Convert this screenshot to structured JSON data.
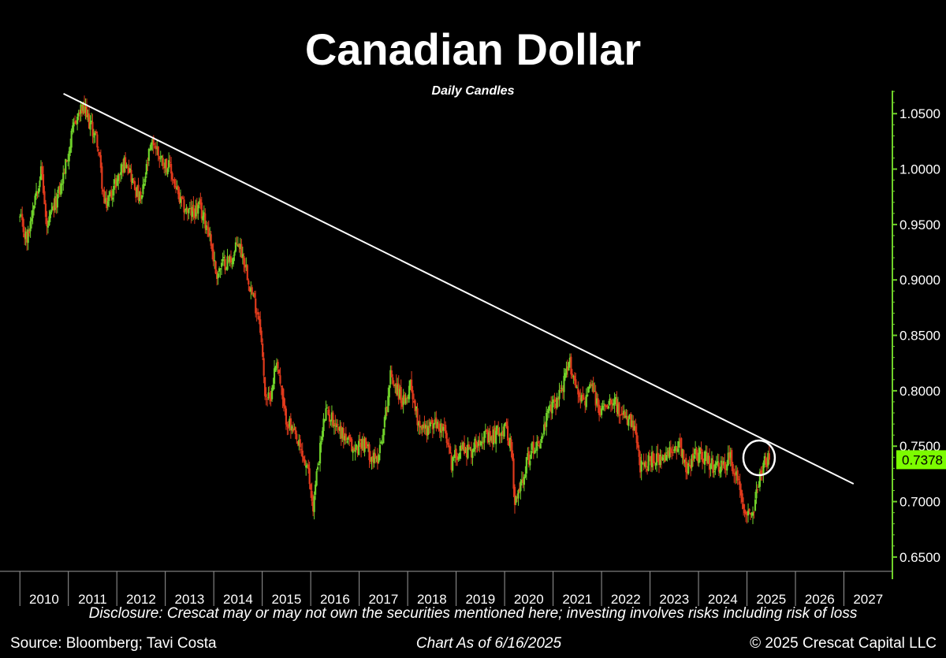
{
  "chart_data": {
    "type": "candlestick",
    "title": "Canadian Dollar",
    "subtitle": "Daily Candles",
    "x_axis": {
      "labels": [
        "2010",
        "2011",
        "2012",
        "2013",
        "2014",
        "2015",
        "2016",
        "2017",
        "2018",
        "2019",
        "2020",
        "2021",
        "2022",
        "2023",
        "2024",
        "2025",
        "2026",
        "2027"
      ],
      "range": [
        2009.72,
        2028.0
      ]
    },
    "y_axis": {
      "position": "right",
      "ticks": [
        0.65,
        0.7,
        0.75,
        0.8,
        0.85,
        0.9,
        0.95,
        1.0,
        1.05
      ],
      "tick_labels": [
        "0.6500",
        "0.7000",
        "0.7500",
        "0.8000",
        "0.8500",
        "0.9000",
        "0.9500",
        "1.0000",
        "1.0500"
      ],
      "range": [
        0.63,
        1.085
      ]
    },
    "last_price": {
      "value": 0.7378,
      "label": "0.7378",
      "color": "#7CFC00"
    },
    "up_color": "#6FD12A",
    "down_color": "#E03A1C",
    "trendline": {
      "start": [
        2010.9,
        1.068
      ],
      "end": [
        2027.2,
        0.716
      ],
      "color": "#FFFFFF"
    },
    "highlight_circle": {
      "x": 2025.25,
      "y": 0.7395,
      "color": "#FFFFFF"
    },
    "price_path": [
      [
        2010.0,
        0.955
      ],
      [
        2010.15,
        0.935
      ],
      [
        2010.3,
        0.975
      ],
      [
        2010.45,
        1.0
      ],
      [
        2010.55,
        0.945
      ],
      [
        2010.7,
        0.965
      ],
      [
        2010.85,
        0.985
      ],
      [
        2011.0,
        1.015
      ],
      [
        2011.15,
        1.045
      ],
      [
        2011.3,
        1.055
      ],
      [
        2011.45,
        1.04
      ],
      [
        2011.6,
        1.025
      ],
      [
        2011.75,
        0.965
      ],
      [
        2011.9,
        0.98
      ],
      [
        2012.0,
        0.99
      ],
      [
        2012.2,
        1.01
      ],
      [
        2012.35,
        0.985
      ],
      [
        2012.5,
        0.97
      ],
      [
        2012.65,
        1.01
      ],
      [
        2012.75,
        1.025
      ],
      [
        2012.9,
        1.01
      ],
      [
        2013.1,
        1.0
      ],
      [
        2013.3,
        0.97
      ],
      [
        2013.5,
        0.96
      ],
      [
        2013.7,
        0.965
      ],
      [
        2013.9,
        0.945
      ],
      [
        2014.05,
        0.905
      ],
      [
        2014.2,
        0.915
      ],
      [
        2014.4,
        0.92
      ],
      [
        2014.5,
        0.935
      ],
      [
        2014.65,
        0.915
      ],
      [
        2014.8,
        0.885
      ],
      [
        2014.95,
        0.865
      ],
      [
        2015.05,
        0.8
      ],
      [
        2015.15,
        0.79
      ],
      [
        2015.3,
        0.83
      ],
      [
        2015.45,
        0.78
      ],
      [
        2015.6,
        0.765
      ],
      [
        2015.8,
        0.745
      ],
      [
        2015.95,
        0.725
      ],
      [
        2016.05,
        0.695
      ],
      [
        2016.15,
        0.735
      ],
      [
        2016.3,
        0.78
      ],
      [
        2016.45,
        0.775
      ],
      [
        2016.6,
        0.765
      ],
      [
        2016.75,
        0.755
      ],
      [
        2016.9,
        0.745
      ],
      [
        2017.05,
        0.755
      ],
      [
        2017.2,
        0.745
      ],
      [
        2017.35,
        0.735
      ],
      [
        2017.5,
        0.765
      ],
      [
        2017.65,
        0.815
      ],
      [
        2017.8,
        0.8
      ],
      [
        2017.95,
        0.785
      ],
      [
        2018.05,
        0.81
      ],
      [
        2018.2,
        0.775
      ],
      [
        2018.35,
        0.765
      ],
      [
        2018.55,
        0.77
      ],
      [
        2018.75,
        0.765
      ],
      [
        2018.9,
        0.735
      ],
      [
        2019.1,
        0.75
      ],
      [
        2019.3,
        0.745
      ],
      [
        2019.5,
        0.76
      ],
      [
        2019.7,
        0.755
      ],
      [
        2019.9,
        0.765
      ],
      [
        2020.05,
        0.765
      ],
      [
        2020.15,
        0.745
      ],
      [
        2020.2,
        0.695
      ],
      [
        2020.3,
        0.71
      ],
      [
        2020.45,
        0.735
      ],
      [
        2020.6,
        0.75
      ],
      [
        2020.75,
        0.755
      ],
      [
        2020.9,
        0.78
      ],
      [
        2021.05,
        0.79
      ],
      [
        2021.2,
        0.805
      ],
      [
        2021.35,
        0.825
      ],
      [
        2021.5,
        0.8
      ],
      [
        2021.65,
        0.79
      ],
      [
        2021.8,
        0.805
      ],
      [
        2021.95,
        0.78
      ],
      [
        2022.1,
        0.79
      ],
      [
        2022.25,
        0.795
      ],
      [
        2022.4,
        0.775
      ],
      [
        2022.55,
        0.775
      ],
      [
        2022.7,
        0.76
      ],
      [
        2022.8,
        0.73
      ],
      [
        2022.95,
        0.735
      ],
      [
        2023.1,
        0.74
      ],
      [
        2023.25,
        0.735
      ],
      [
        2023.45,
        0.745
      ],
      [
        2023.6,
        0.755
      ],
      [
        2023.75,
        0.73
      ],
      [
        2023.9,
        0.74
      ],
      [
        2024.05,
        0.745
      ],
      [
        2024.2,
        0.735
      ],
      [
        2024.35,
        0.73
      ],
      [
        2024.5,
        0.73
      ],
      [
        2024.65,
        0.74
      ],
      [
        2024.8,
        0.72
      ],
      [
        2024.95,
        0.695
      ],
      [
        2025.05,
        0.69
      ],
      [
        2025.15,
        0.695
      ],
      [
        2025.25,
        0.72
      ],
      [
        2025.35,
        0.735
      ],
      [
        2025.46,
        0.7378
      ]
    ]
  },
  "footer": {
    "disclosure": "Disclosure: Crescat may or may not own the securities mentioned here; investing involves risks including risk of loss",
    "source": "Source: Bloomberg; Tavi Costa",
    "as_of": "Chart As of 6/16/2025",
    "copyright": "© 2025 Crescat Capital LLC"
  }
}
